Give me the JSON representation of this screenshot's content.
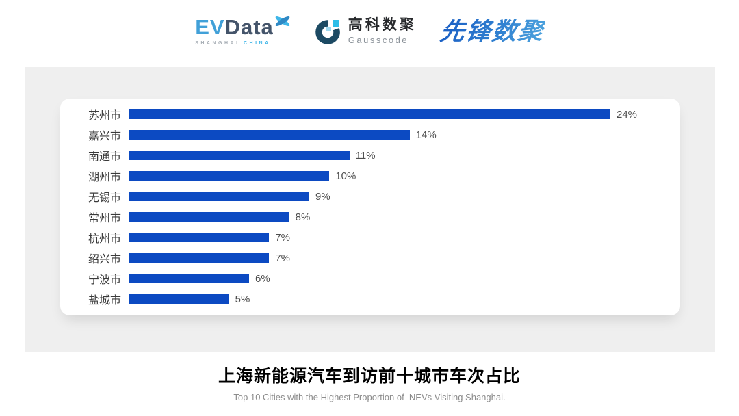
{
  "header": {
    "evdata": {
      "name_part1": "EV",
      "name_part2": "Data",
      "tagline_part1": "SHANGHAI",
      "tagline_part2": "CHINA",
      "colors": {
        "ev": "#41a0d8",
        "data": "#44546a",
        "accent": "#3fb6e8"
      }
    },
    "gausscode": {
      "cn_name": "高科数聚",
      "en_name": "Gausscode",
      "colors": {
        "mark": "#1c4a63",
        "accent": "#2cbde8"
      }
    },
    "xianfeng": {
      "name": "先锋数聚",
      "color": "#2b7cc9"
    }
  },
  "chart_data": {
    "type": "bar",
    "orientation": "horizontal",
    "categories": [
      "苏州市",
      "嘉兴市",
      "南通市",
      "湖州市",
      "无锡市",
      "常州市",
      "杭州市",
      "绍兴市",
      "宁波市",
      "盐城市"
    ],
    "values": [
      24,
      14,
      11,
      10,
      9,
      8,
      7,
      7,
      6,
      5
    ],
    "unit": "%",
    "value_labels": true,
    "grid": false,
    "xlim": [
      0,
      27
    ],
    "bar_color": "#0c4ac2",
    "title": "上海新能源汽车到访前十城市车次占比",
    "subtitle": "Top 10 Cities with the Highest Proportion of  NEVs Visiting Shanghai.",
    "xlabel": "",
    "ylabel": ""
  },
  "footer": {
    "title": "上海新能源汽车到访前十城市车次占比",
    "subtitle": "Top 10 Cities with the Highest Proportion of  NEVs Visiting Shanghai."
  }
}
